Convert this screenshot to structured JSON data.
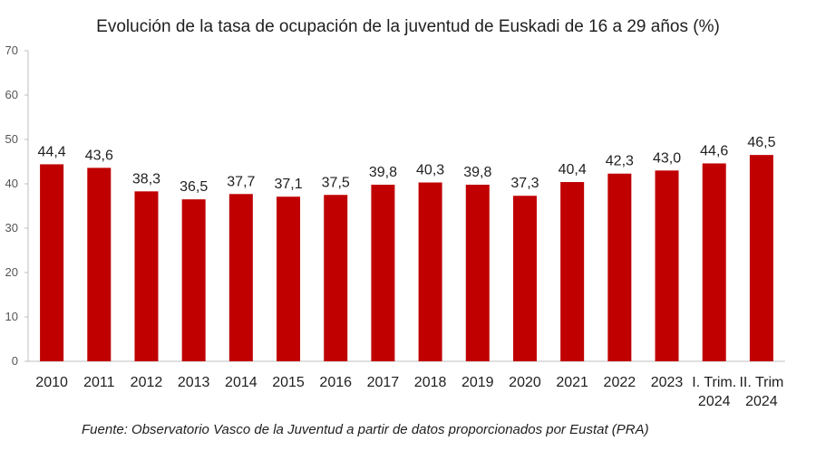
{
  "chart_data": {
    "type": "bar",
    "title": "Evolución de la tasa de ocupación de la juventud de Euskadi de 16 a 29 años (%)",
    "categories": [
      "2010",
      "2011",
      "2012",
      "2013",
      "2014",
      "2015",
      "2016",
      "2017",
      "2018",
      "2019",
      "2020",
      "2021",
      "2022",
      "2023",
      "I. Trim. 2024",
      "II. Trim 2024"
    ],
    "category_lines": [
      [
        "2010"
      ],
      [
        "2011"
      ],
      [
        "2012"
      ],
      [
        "2013"
      ],
      [
        "2014"
      ],
      [
        "2015"
      ],
      [
        "2016"
      ],
      [
        "2017"
      ],
      [
        "2018"
      ],
      [
        "2019"
      ],
      [
        "2020"
      ],
      [
        "2021"
      ],
      [
        "2022"
      ],
      [
        "2023"
      ],
      [
        "I. Trim.",
        "2024"
      ],
      [
        "II. Trim",
        "2024"
      ]
    ],
    "values": [
      44.4,
      43.6,
      38.3,
      36.5,
      37.7,
      37.1,
      37.5,
      39.8,
      40.3,
      39.8,
      37.3,
      40.4,
      42.3,
      43.0,
      44.6,
      46.5
    ],
    "data_labels": [
      "44,4",
      "43,6",
      "38,3",
      "36,5",
      "37,7",
      "37,1",
      "37,5",
      "39,8",
      "40,3",
      "39,8",
      "37,3",
      "40,4",
      "42,3",
      "43,0",
      "44,6",
      "46,5"
    ],
    "ylim": [
      0,
      70
    ],
    "yticks": [
      0,
      10,
      20,
      30,
      40,
      50,
      60,
      70
    ],
    "xlabel": "",
    "ylabel": "",
    "grid": false,
    "legend": "none",
    "bar_color": "#C00000",
    "source": "Fuente: Observatorio Vasco de la Juventud a partir de datos proporcionados por Eustat  (PRA)"
  }
}
